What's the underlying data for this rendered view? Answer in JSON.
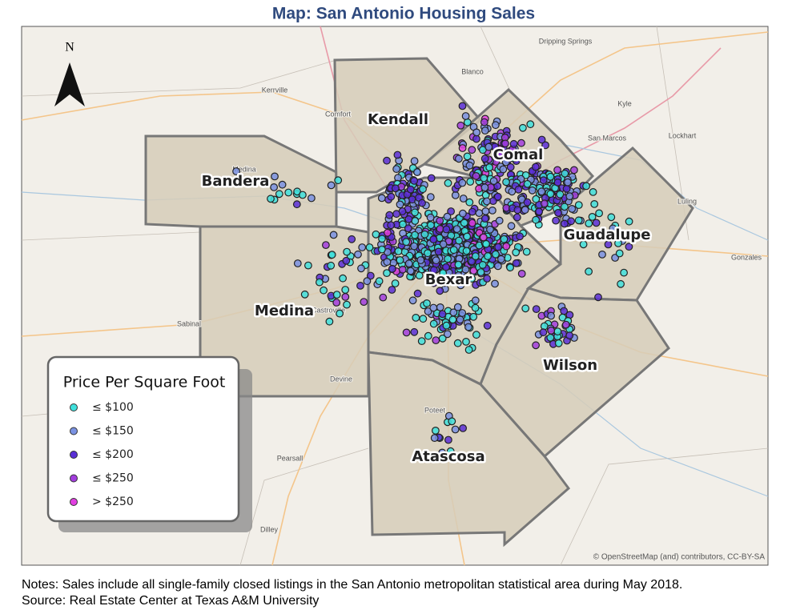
{
  "header": {
    "title": "Map: San Antonio Housing Sales"
  },
  "map": {
    "north_label": "N",
    "counties": [
      {
        "label": "Kendall"
      },
      {
        "label": "Comal"
      },
      {
        "label": "Bandera"
      },
      {
        "label": "Guadalupe"
      },
      {
        "label": "Bexar"
      },
      {
        "label": "Medina"
      },
      {
        "label": "Wilson"
      },
      {
        "label": "Atascosa"
      }
    ],
    "places": [
      {
        "label": "Dripping Springs"
      },
      {
        "label": "Blanco"
      },
      {
        "label": "Kerrville"
      },
      {
        "label": "Comfort"
      },
      {
        "label": "Kyle"
      },
      {
        "label": "San Marcos"
      },
      {
        "label": "Lockhart"
      },
      {
        "label": "Luling"
      },
      {
        "label": "Gonzales"
      },
      {
        "label": "Sabinal"
      },
      {
        "label": "Devine"
      },
      {
        "label": "Poteet"
      },
      {
        "label": "Pearsall"
      },
      {
        "label": "Dilley"
      },
      {
        "label": "Medina"
      },
      {
        "label": "Castroville"
      }
    ],
    "attribution": "© OpenStreetMap (and) contributors, CC-BY-SA"
  },
  "legend": {
    "title": "Price Per Square Foot",
    "items": [
      {
        "label": "≤ $100",
        "color": "#3fe0dc"
      },
      {
        "label": "≤ $150",
        "color": "#7a92e2"
      },
      {
        "label": "≤ $200",
        "color": "#5a2fd6"
      },
      {
        "label": "≤ $250",
        "color": "#a23ddd"
      },
      {
        "label": "> $250",
        "color": "#e03fe0"
      }
    ]
  },
  "footer": {
    "notes": "Notes: Sales include all single-family closed listings in the San Antonio metropolitan statistical area during May 2018.",
    "source": "Source: Real Estate Center at Texas A&M University"
  }
}
